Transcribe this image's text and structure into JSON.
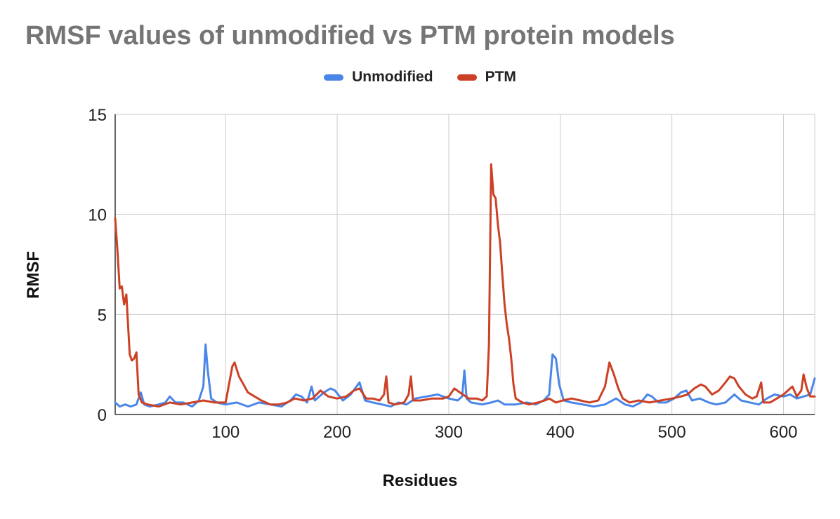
{
  "chart_data": {
    "type": "line",
    "title": "RMSF values of unmodified vs PTM protein models",
    "xlabel": "Residues",
    "ylabel": "RMSF",
    "xlim": [
      1,
      628
    ],
    "ylim": [
      0,
      15
    ],
    "x_ticks": [
      100,
      200,
      300,
      400,
      500,
      600
    ],
    "y_ticks": [
      0,
      5,
      10,
      15
    ],
    "grid": true,
    "legend_position": "top",
    "series": [
      {
        "name": "Unmodified",
        "color": "#4a86e8",
        "points": [
          [
            1,
            0.6
          ],
          [
            5,
            0.4
          ],
          [
            10,
            0.5
          ],
          [
            15,
            0.4
          ],
          [
            20,
            0.5
          ],
          [
            24,
            1.1
          ],
          [
            27,
            0.5
          ],
          [
            32,
            0.4
          ],
          [
            40,
            0.5
          ],
          [
            46,
            0.6
          ],
          [
            50,
            0.9
          ],
          [
            55,
            0.6
          ],
          [
            62,
            0.6
          ],
          [
            70,
            0.4
          ],
          [
            76,
            0.7
          ],
          [
            80,
            1.4
          ],
          [
            82,
            3.5
          ],
          [
            84,
            2.2
          ],
          [
            87,
            0.8
          ],
          [
            92,
            0.6
          ],
          [
            100,
            0.5
          ],
          [
            110,
            0.6
          ],
          [
            120,
            0.4
          ],
          [
            130,
            0.6
          ],
          [
            140,
            0.5
          ],
          [
            150,
            0.4
          ],
          [
            158,
            0.7
          ],
          [
            163,
            1.0
          ],
          [
            168,
            0.9
          ],
          [
            173,
            0.6
          ],
          [
            177,
            1.4
          ],
          [
            180,
            0.7
          ],
          [
            188,
            1.1
          ],
          [
            194,
            1.3
          ],
          [
            198,
            1.2
          ],
          [
            205,
            0.7
          ],
          [
            212,
            1.0
          ],
          [
            220,
            1.6
          ],
          [
            225,
            0.7
          ],
          [
            232,
            0.6
          ],
          [
            240,
            0.5
          ],
          [
            248,
            0.4
          ],
          [
            255,
            0.6
          ],
          [
            262,
            0.5
          ],
          [
            270,
            0.8
          ],
          [
            280,
            0.9
          ],
          [
            290,
            1.0
          ],
          [
            300,
            0.8
          ],
          [
            308,
            0.7
          ],
          [
            312,
            0.9
          ],
          [
            314,
            2.2
          ],
          [
            316,
            0.8
          ],
          [
            320,
            0.6
          ],
          [
            330,
            0.5
          ],
          [
            338,
            0.6
          ],
          [
            344,
            0.7
          ],
          [
            350,
            0.5
          ],
          [
            360,
            0.5
          ],
          [
            370,
            0.6
          ],
          [
            378,
            0.5
          ],
          [
            385,
            0.7
          ],
          [
            390,
            1.0
          ],
          [
            393,
            3.0
          ],
          [
            396,
            2.8
          ],
          [
            399,
            1.5
          ],
          [
            403,
            0.7
          ],
          [
            410,
            0.6
          ],
          [
            420,
            0.5
          ],
          [
            430,
            0.4
          ],
          [
            440,
            0.5
          ],
          [
            450,
            0.8
          ],
          [
            458,
            0.5
          ],
          [
            465,
            0.4
          ],
          [
            472,
            0.6
          ],
          [
            478,
            1.0
          ],
          [
            482,
            0.9
          ],
          [
            488,
            0.6
          ],
          [
            495,
            0.6
          ],
          [
            502,
            0.8
          ],
          [
            508,
            1.1
          ],
          [
            513,
            1.2
          ],
          [
            518,
            0.7
          ],
          [
            525,
            0.8
          ],
          [
            533,
            0.6
          ],
          [
            540,
            0.5
          ],
          [
            548,
            0.6
          ],
          [
            556,
            1.0
          ],
          [
            562,
            0.7
          ],
          [
            570,
            0.6
          ],
          [
            578,
            0.5
          ],
          [
            585,
            0.8
          ],
          [
            592,
            1.0
          ],
          [
            600,
            0.9
          ],
          [
            606,
            1.0
          ],
          [
            612,
            0.8
          ],
          [
            618,
            0.9
          ],
          [
            624,
            1.0
          ],
          [
            628,
            1.8
          ]
        ]
      },
      {
        "name": "PTM",
        "color": "#cc4125",
        "points": [
          [
            1,
            9.8
          ],
          [
            3,
            8.2
          ],
          [
            5,
            6.3
          ],
          [
            7,
            6.4
          ],
          [
            9,
            5.5
          ],
          [
            11,
            6.0
          ],
          [
            12,
            5.0
          ],
          [
            14,
            3.0
          ],
          [
            16,
            2.7
          ],
          [
            18,
            2.8
          ],
          [
            20,
            3.1
          ],
          [
            22,
            1.0
          ],
          [
            25,
            0.6
          ],
          [
            30,
            0.5
          ],
          [
            40,
            0.4
          ],
          [
            50,
            0.6
          ],
          [
            60,
            0.5
          ],
          [
            70,
            0.6
          ],
          [
            80,
            0.7
          ],
          [
            90,
            0.6
          ],
          [
            100,
            0.6
          ],
          [
            103,
            1.5
          ],
          [
            106,
            2.4
          ],
          [
            108,
            2.6
          ],
          [
            112,
            1.9
          ],
          [
            116,
            1.5
          ],
          [
            120,
            1.1
          ],
          [
            126,
            0.9
          ],
          [
            132,
            0.7
          ],
          [
            140,
            0.5
          ],
          [
            148,
            0.5
          ],
          [
            155,
            0.6
          ],
          [
            162,
            0.8
          ],
          [
            170,
            0.7
          ],
          [
            178,
            0.8
          ],
          [
            185,
            1.2
          ],
          [
            192,
            0.9
          ],
          [
            200,
            0.8
          ],
          [
            208,
            0.9
          ],
          [
            215,
            1.2
          ],
          [
            220,
            1.3
          ],
          [
            226,
            0.8
          ],
          [
            232,
            0.8
          ],
          [
            238,
            0.7
          ],
          [
            242,
            1.0
          ],
          [
            244,
            1.9
          ],
          [
            246,
            0.6
          ],
          [
            252,
            0.5
          ],
          [
            260,
            0.6
          ],
          [
            264,
            1.0
          ],
          [
            266,
            1.9
          ],
          [
            268,
            0.7
          ],
          [
            275,
            0.7
          ],
          [
            285,
            0.8
          ],
          [
            295,
            0.8
          ],
          [
            300,
            0.9
          ],
          [
            305,
            1.3
          ],
          [
            310,
            1.1
          ],
          [
            318,
            0.8
          ],
          [
            325,
            0.8
          ],
          [
            330,
            0.7
          ],
          [
            334,
            0.9
          ],
          [
            336,
            3.5
          ],
          [
            338,
            12.5
          ],
          [
            340,
            11.0
          ],
          [
            342,
            10.8
          ],
          [
            344,
            9.5
          ],
          [
            346,
            8.6
          ],
          [
            348,
            7.0
          ],
          [
            350,
            5.5
          ],
          [
            352,
            4.5
          ],
          [
            354,
            3.8
          ],
          [
            356,
            2.8
          ],
          [
            358,
            1.5
          ],
          [
            360,
            0.8
          ],
          [
            366,
            0.6
          ],
          [
            372,
            0.5
          ],
          [
            380,
            0.6
          ],
          [
            386,
            0.7
          ],
          [
            390,
            0.8
          ],
          [
            396,
            0.6
          ],
          [
            402,
            0.7
          ],
          [
            410,
            0.8
          ],
          [
            418,
            0.7
          ],
          [
            426,
            0.6
          ],
          [
            434,
            0.7
          ],
          [
            440,
            1.4
          ],
          [
            444,
            2.6
          ],
          [
            448,
            2.0
          ],
          [
            452,
            1.3
          ],
          [
            456,
            0.8
          ],
          [
            462,
            0.6
          ],
          [
            470,
            0.7
          ],
          [
            480,
            0.6
          ],
          [
            490,
            0.7
          ],
          [
            500,
            0.8
          ],
          [
            508,
            0.9
          ],
          [
            514,
            1.0
          ],
          [
            520,
            1.3
          ],
          [
            526,
            1.5
          ],
          [
            530,
            1.4
          ],
          [
            536,
            1.0
          ],
          [
            542,
            1.2
          ],
          [
            548,
            1.6
          ],
          [
            552,
            1.9
          ],
          [
            556,
            1.8
          ],
          [
            560,
            1.4
          ],
          [
            566,
            1.0
          ],
          [
            572,
            0.8
          ],
          [
            576,
            0.9
          ],
          [
            580,
            1.6
          ],
          [
            582,
            0.6
          ],
          [
            588,
            0.6
          ],
          [
            594,
            0.8
          ],
          [
            600,
            1.0
          ],
          [
            604,
            1.2
          ],
          [
            608,
            1.4
          ],
          [
            612,
            0.9
          ],
          [
            616,
            1.2
          ],
          [
            618,
            2.0
          ],
          [
            621,
            1.3
          ],
          [
            624,
            0.9
          ],
          [
            628,
            0.9
          ]
        ]
      }
    ]
  }
}
